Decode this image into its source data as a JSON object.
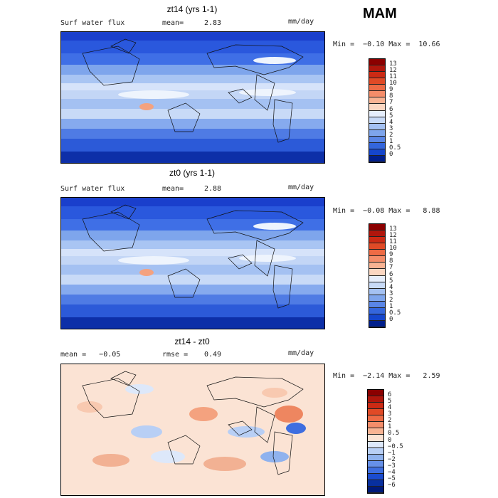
{
  "season": "MAM",
  "panels": [
    {
      "title": "zt14 (yrs 1-1)",
      "left_label": "Surf water flux",
      "mean_label": "mean=",
      "mean_value": "2.83",
      "units": "mm/day",
      "minmax": "Min =  −0.10 Max =  10.66",
      "colorbar": {
        "labels": [
          "13",
          "12",
          "11",
          "10",
          "9",
          "8",
          "7",
          "6",
          "5",
          "4",
          "3",
          "2",
          "1",
          "0.5",
          "0"
        ],
        "colors": [
          "#8b0000",
          "#b0160c",
          "#cc2a14",
          "#e04a26",
          "#ee6b45",
          "#f48d6a",
          "#f8b393",
          "#fbd7c2",
          "#e6eefc",
          "#c8daf7",
          "#a4c1f2",
          "#7ea5ec",
          "#5a86e6",
          "#3466dc",
          "#1546cc",
          "#001f8c"
        ]
      },
      "palette": "precip"
    },
    {
      "title": "zt0 (yrs 1-1)",
      "left_label": "Surf water flux",
      "mean_label": "mean=",
      "mean_value": "2.88",
      "units": "mm/day",
      "minmax": "Min =  −0.08 Max =   8.88",
      "colorbar": {
        "labels": [
          "13",
          "12",
          "11",
          "10",
          "9",
          "8",
          "7",
          "6",
          "5",
          "4",
          "3",
          "2",
          "1",
          "0.5",
          "0"
        ],
        "colors": [
          "#8b0000",
          "#b0160c",
          "#cc2a14",
          "#e04a26",
          "#ee6b45",
          "#f48d6a",
          "#f8b393",
          "#fbd7c2",
          "#e6eefc",
          "#c8daf7",
          "#a4c1f2",
          "#7ea5ec",
          "#5a86e6",
          "#3466dc",
          "#1546cc",
          "#001f8c"
        ]
      },
      "palette": "precip"
    },
    {
      "title": "zt14 - zt0",
      "left_label": "mean =   −0.05",
      "mean_label": "rmse =",
      "mean_value": "0.49",
      "units": "mm/day",
      "minmax": "Min =  −2.14 Max =   2.59",
      "colorbar": {
        "labels": [
          "6",
          "5",
          "4",
          "3",
          "2",
          "1",
          "0.5",
          "0",
          "−0.5",
          "−1",
          "−2",
          "−3",
          "−4",
          "−5",
          "−6"
        ],
        "colors": [
          "#8b0000",
          "#b0160c",
          "#cc2a14",
          "#e04a26",
          "#ee6b45",
          "#f48d6a",
          "#f8b393",
          "#fbe3d4",
          "#dde8fa",
          "#b8cff5",
          "#8fb2ee",
          "#6690e8",
          "#3e6ee0",
          "#1b4ccf",
          "#08309f",
          "#001a7a"
        ]
      },
      "palette": "diff"
    }
  ]
}
